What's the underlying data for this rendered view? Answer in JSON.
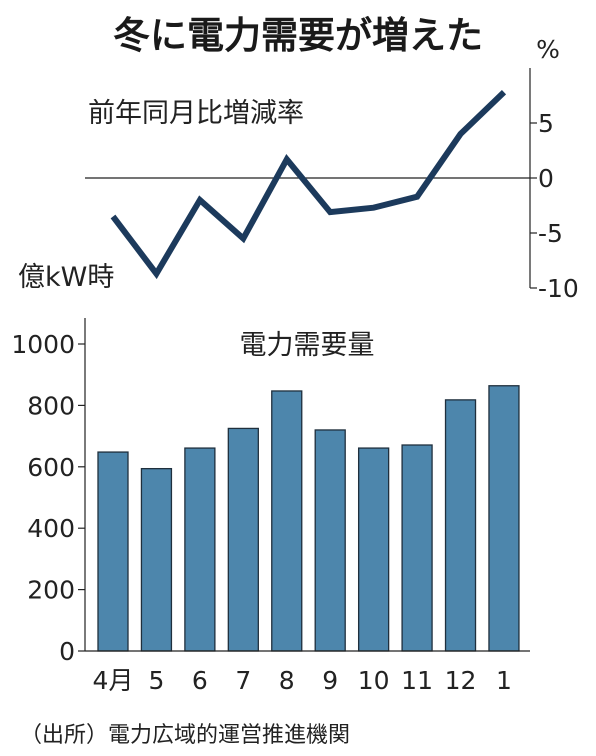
{
  "chart_data": [
    {
      "type": "line",
      "title": "冬に電力需要が増えた",
      "subtitle": "前年同月比増減率",
      "ylabel": "%",
      "x": [
        "4月",
        "5",
        "6",
        "7",
        "8",
        "9",
        "10",
        "11",
        "12",
        "1"
      ],
      "values": [
        -3.5,
        -8.7,
        -2.0,
        -5.5,
        1.7,
        -3.1,
        -2.7,
        -1.7,
        4.0,
        7.8
      ],
      "ylim": [
        -10,
        10
      ],
      "yticks": [
        5,
        0,
        -5,
        -10
      ],
      "yticklabels": [
        "5",
        "0",
        "-5",
        "-10"
      ],
      "color": "#1c3a5c",
      "grid": false
    },
    {
      "type": "bar",
      "title": "電力需要量",
      "ylabel": "億kW時",
      "categories": [
        "4月",
        "5",
        "6",
        "7",
        "8",
        "9",
        "10",
        "11",
        "12",
        "1"
      ],
      "values": [
        648,
        594,
        661,
        725,
        847,
        720,
        661,
        671,
        818,
        864
      ],
      "ylim": [
        0,
        1000
      ],
      "yticks": [
        0,
        200,
        400,
        600,
        800,
        1000
      ],
      "yticklabels": [
        "0",
        "200",
        "400",
        "600",
        "800",
        "1000"
      ],
      "color": "#4d86ac",
      "grid": false
    }
  ],
  "source": "（出所）電力広域的運営推進機関"
}
